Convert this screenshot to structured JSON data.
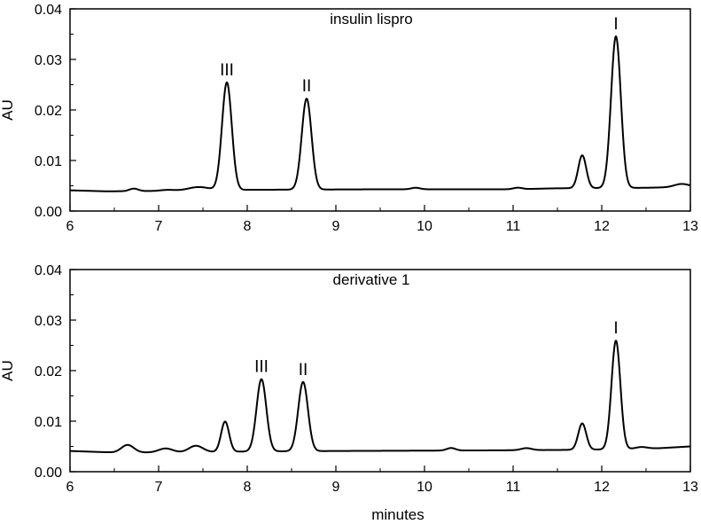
{
  "x_axis_label": "minutes",
  "chart_data": [
    {
      "type": "line",
      "title": "insulin lispro",
      "xlabel": "",
      "ylabel": "AU",
      "xlim": [
        6,
        13
      ],
      "ylim": [
        0,
        0.04
      ],
      "xticks": [
        "6",
        "7",
        "8",
        "9",
        "10",
        "11",
        "12",
        "13"
      ],
      "yticks": [
        "0.00",
        "0.01",
        "0.02",
        "0.03",
        "0.04"
      ],
      "grid": false,
      "baseline": [
        [
          6.0,
          0.0041
        ],
        [
          6.4,
          0.0039
        ],
        [
          7.3,
          0.004
        ],
        [
          8.0,
          0.0042
        ],
        [
          9.5,
          0.0043
        ],
        [
          11.0,
          0.0043
        ],
        [
          11.5,
          0.0045
        ],
        [
          12.5,
          0.0046
        ],
        [
          13.0,
          0.0048
        ]
      ],
      "bumps": [
        {
          "x": 6.72,
          "height": 0.0005,
          "width": 0.05
        },
        {
          "x": 7.1,
          "height": 0.0002,
          "width": 0.08
        },
        {
          "x": 7.45,
          "height": 0.0007,
          "width": 0.12
        },
        {
          "x": 9.9,
          "height": 0.0003,
          "width": 0.05
        },
        {
          "x": 11.05,
          "height": 0.0003,
          "width": 0.05
        },
        {
          "x": 12.9,
          "height": 0.0006,
          "width": 0.08
        }
      ],
      "peaks": [
        {
          "label": "III",
          "x": 7.77,
          "height": 0.0213,
          "width": 0.055
        },
        {
          "label": "II",
          "x": 8.67,
          "height": 0.018,
          "width": 0.055
        },
        {
          "label": "",
          "x": 11.78,
          "height": 0.0065,
          "width": 0.045
        },
        {
          "label": "I",
          "x": 12.16,
          "height": 0.03,
          "width": 0.055
        }
      ]
    },
    {
      "type": "line",
      "title": "derivative 1",
      "xlabel": "minutes",
      "ylabel": "AU",
      "xlim": [
        6,
        13
      ],
      "ylim": [
        0,
        0.04
      ],
      "xticks": [
        "6",
        "7",
        "8",
        "9",
        "10",
        "11",
        "12",
        "13"
      ],
      "yticks": [
        "0.00",
        "0.01",
        "0.02",
        "0.03",
        "0.04"
      ],
      "grid": false,
      "baseline": [
        [
          6.0,
          0.0041
        ],
        [
          6.5,
          0.0038
        ],
        [
          7.3,
          0.0038
        ],
        [
          8.0,
          0.004
        ],
        [
          9.0,
          0.0041
        ],
        [
          10.5,
          0.0042
        ],
        [
          11.5,
          0.0043
        ],
        [
          12.5,
          0.0045
        ],
        [
          13.0,
          0.005
        ]
      ],
      "bumps": [
        {
          "x": 6.65,
          "height": 0.0015,
          "width": 0.07
        },
        {
          "x": 7.08,
          "height": 0.0008,
          "width": 0.08
        },
        {
          "x": 7.42,
          "height": 0.0013,
          "width": 0.08
        },
        {
          "x": 10.3,
          "height": 0.0005,
          "width": 0.05
        },
        {
          "x": 11.15,
          "height": 0.0004,
          "width": 0.06
        },
        {
          "x": 12.45,
          "height": 0.0004,
          "width": 0.07
        }
      ],
      "peaks": [
        {
          "label": "",
          "x": 7.75,
          "height": 0.006,
          "width": 0.045
        },
        {
          "label": "III",
          "x": 8.16,
          "height": 0.0143,
          "width": 0.055
        },
        {
          "label": "II",
          "x": 8.63,
          "height": 0.0137,
          "width": 0.055
        },
        {
          "label": "",
          "x": 11.78,
          "height": 0.0052,
          "width": 0.045
        },
        {
          "label": "I",
          "x": 12.16,
          "height": 0.0215,
          "width": 0.05
        }
      ]
    }
  ]
}
